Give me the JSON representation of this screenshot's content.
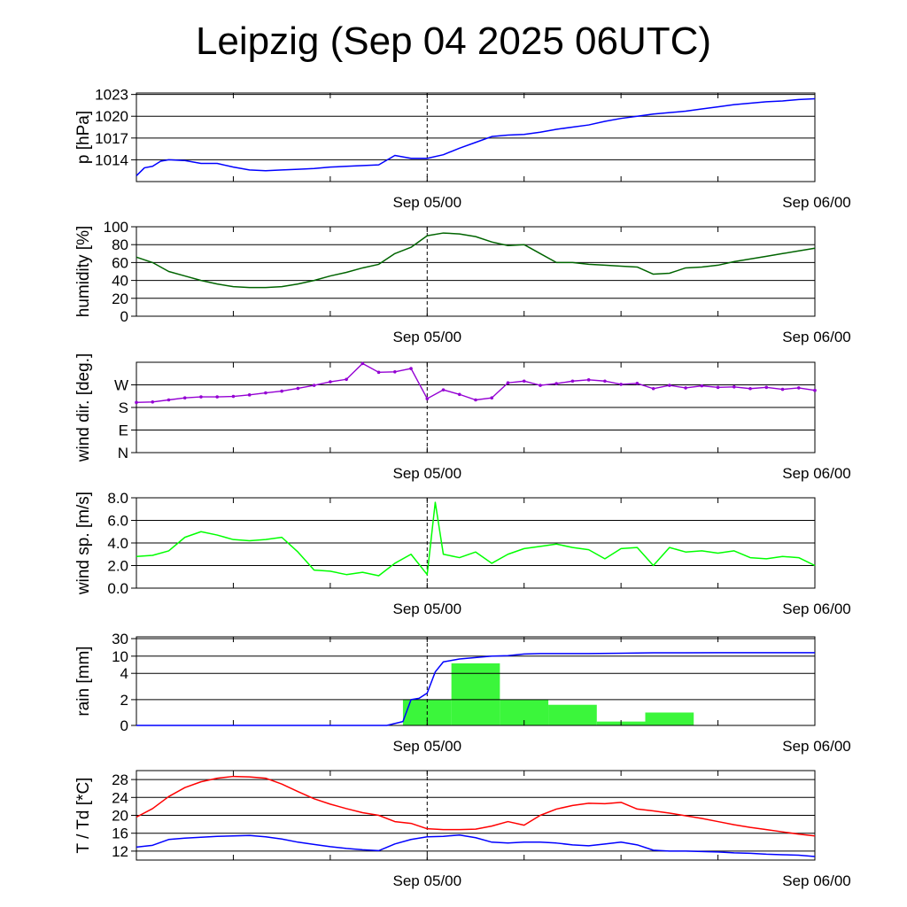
{
  "title": "Leipzig (Sep 04 2025 06UTC)",
  "x_tick_labels": [
    "Sep 05/00",
    "Sep 06/00"
  ],
  "colors": {
    "pressure": "#0000ff",
    "humidity": "#006400",
    "wind_dir": "#9400d3",
    "wind_speed": "#00ff00",
    "rain_bars": "#3bf63b",
    "rain_cum": "#0000ff",
    "temperature": "#ff0000",
    "dewpoint": "#0000ff"
  },
  "chart_data": [
    {
      "type": "line",
      "id": "pressure",
      "ylabel": "p [hPa]",
      "xlim_hours": [
        0,
        42
      ],
      "ylim": [
        1011,
        1023.2
      ],
      "yticks": [
        1014,
        1017,
        1020,
        1023
      ],
      "ytick_labels": [
        "1014",
        "1017",
        "1020",
        "1023"
      ],
      "series": [
        {
          "name": "pressure",
          "x": [
            0,
            0.5,
            1,
            1.5,
            2,
            3,
            4,
            5,
            6,
            7,
            8,
            9,
            10,
            11,
            12,
            13,
            15,
            16,
            17,
            18,
            19,
            20,
            21,
            22,
            23,
            24,
            25,
            26,
            27,
            28,
            29,
            30,
            31,
            32,
            33,
            34,
            35,
            36,
            37,
            38,
            39,
            40,
            41,
            42
          ],
          "values": [
            1011.8,
            1012.9,
            1013.1,
            1013.8,
            1014.0,
            1013.9,
            1013.5,
            1013.5,
            1013.0,
            1012.6,
            1012.5,
            1012.6,
            1012.7,
            1012.8,
            1013.0,
            1013.1,
            1013.3,
            1014.6,
            1014.2,
            1014.2,
            1014.7,
            1015.6,
            1016.4,
            1017.2,
            1017.4,
            1017.5,
            1017.8,
            1018.2,
            1018.5,
            1018.8,
            1019.3,
            1019.7,
            1020.0,
            1020.3,
            1020.5,
            1020.7,
            1021.0,
            1021.3,
            1021.6,
            1021.8,
            1022.0,
            1022.1,
            1022.3,
            1022.4
          ]
        }
      ]
    },
    {
      "type": "line",
      "id": "humidity",
      "ylabel": "humidity [%]",
      "xlim_hours": [
        0,
        42
      ],
      "ylim": [
        0,
        100
      ],
      "yticks": [
        0,
        20,
        40,
        60,
        80,
        100
      ],
      "ytick_labels": [
        "0",
        "20",
        "40",
        "60",
        "80",
        "100"
      ],
      "series": [
        {
          "name": "humidity",
          "x": [
            0,
            1,
            2,
            3,
            4,
            5,
            6,
            7,
            8,
            9,
            10,
            11,
            12,
            13,
            14,
            15,
            16,
            17,
            18,
            19,
            20,
            21,
            22,
            23,
            24,
            25,
            26,
            27,
            28,
            29,
            30,
            31,
            32,
            33,
            34,
            35,
            36,
            37,
            38,
            39,
            40,
            41,
            42
          ],
          "values": [
            66,
            60,
            50,
            45,
            40,
            36,
            33,
            32,
            32,
            33,
            36,
            40,
            45,
            49,
            54,
            58,
            70,
            77,
            90,
            93,
            92,
            89,
            83,
            79,
            80,
            70,
            60,
            60,
            58,
            57,
            56,
            55,
            47,
            48,
            54,
            55,
            57,
            61,
            64,
            67,
            70,
            73,
            76
          ]
        }
      ]
    },
    {
      "type": "scatter",
      "id": "wind_direction",
      "ylabel": "wind dir. [deg.]",
      "xlim_hours": [
        0,
        42
      ],
      "ylim": [
        0,
        360
      ],
      "yticks": [
        0,
        90,
        180,
        270
      ],
      "ytick_labels": [
        "N",
        "E",
        "S",
        "W"
      ],
      "series": [
        {
          "name": "wind direction",
          "x": [
            0,
            1,
            2,
            3,
            4,
            5,
            6,
            7,
            8,
            9,
            10,
            11,
            12,
            13,
            14,
            15,
            16,
            17,
            18,
            19,
            20,
            21,
            22,
            23,
            24,
            25,
            26,
            27,
            28,
            29,
            30,
            31,
            32,
            33,
            34,
            35,
            36,
            37,
            38,
            39,
            40,
            41,
            42
          ],
          "values": [
            200,
            202,
            210,
            218,
            222,
            222,
            224,
            230,
            238,
            245,
            256,
            268,
            282,
            292,
            355,
            320,
            322,
            335,
            215,
            250,
            232,
            210,
            218,
            278,
            285,
            268,
            275,
            285,
            290,
            285,
            272,
            276,
            255,
            268,
            258,
            266,
            260,
            262,
            255,
            260,
            252,
            258,
            248
          ]
        }
      ]
    },
    {
      "type": "line",
      "id": "wind_speed",
      "ylabel": "wind sp. [m/s]",
      "xlim_hours": [
        0,
        42
      ],
      "ylim": [
        0,
        8
      ],
      "yticks": [
        0,
        2,
        4,
        6,
        8
      ],
      "ytick_labels": [
        "0.0",
        "2.0",
        "4.0",
        "6.0",
        "8.0"
      ],
      "series": [
        {
          "name": "wind speed",
          "x": [
            0,
            1,
            2,
            3,
            4,
            5,
            6,
            7,
            8,
            9,
            10,
            11,
            12,
            13,
            14,
            15,
            16,
            17,
            18,
            18.5,
            19,
            20,
            21,
            22,
            23,
            24,
            25,
            26,
            27,
            28,
            29,
            30,
            31,
            32,
            33,
            34,
            35,
            36,
            37,
            38,
            39,
            40,
            41,
            42
          ],
          "values": [
            2.8,
            2.9,
            3.3,
            4.5,
            5.0,
            4.7,
            4.3,
            4.2,
            4.3,
            4.5,
            3.2,
            1.6,
            1.5,
            1.2,
            1.4,
            1.1,
            2.2,
            3.0,
            1.2,
            7.6,
            3.0,
            2.7,
            3.2,
            2.2,
            3.0,
            3.5,
            3.7,
            3.9,
            3.6,
            3.4,
            2.6,
            3.5,
            3.6,
            2.0,
            3.6,
            3.2,
            3.3,
            3.1,
            3.3,
            2.7,
            2.6,
            2.8,
            2.7,
            2.0
          ]
        }
      ]
    },
    {
      "type": "bar",
      "id": "rain",
      "ylabel": "rain [mm]",
      "xlim_hours": [
        0,
        42
      ],
      "ytick_labels": [
        "0",
        "2",
        "4",
        "10",
        "30"
      ],
      "ytick_values": [
        0,
        2,
        4,
        10,
        30
      ],
      "bars": [
        {
          "start": 16.5,
          "end": 19.5,
          "value": 2.0
        },
        {
          "start": 19.5,
          "end": 22.5,
          "value": 7.5
        },
        {
          "start": 22.5,
          "end": 25.5,
          "value": 2.0
        },
        {
          "start": 25.5,
          "end": 28.5,
          "value": 1.6
        },
        {
          "start": 28.5,
          "end": 31.5,
          "value": 0.3
        },
        {
          "start": 31.5,
          "end": 34.5,
          "value": 1.0
        },
        {
          "start": 34.5,
          "end": 37.5,
          "value": 0.02
        }
      ],
      "series": [
        {
          "name": "cumulative rain",
          "x": [
            0,
            15.5,
            16.5,
            17,
            17.5,
            18,
            18.5,
            19,
            19.5,
            20,
            21,
            22,
            23,
            24,
            25,
            26,
            28,
            30,
            31,
            32,
            34,
            36,
            38,
            40,
            42
          ],
          "values": [
            0,
            0,
            0.3,
            2.0,
            2.1,
            2.5,
            4.5,
            8.0,
            8.5,
            9.0,
            9.5,
            10.0,
            10.5,
            12.5,
            13.0,
            13.0,
            13.0,
            13.3,
            13.6,
            13.8,
            13.9,
            14.0,
            14.0,
            14.0,
            14.0
          ]
        }
      ]
    },
    {
      "type": "line",
      "id": "temperature",
      "ylabel": "T / Td [*C]",
      "xlim_hours": [
        0,
        42
      ],
      "ylim": [
        10,
        30
      ],
      "yticks": [
        12,
        16,
        20,
        24,
        28
      ],
      "ytick_labels": [
        "12",
        "16",
        "20",
        "24",
        "28"
      ],
      "series": [
        {
          "name": "temperature",
          "x": [
            0,
            1,
            2,
            3,
            4,
            5,
            6,
            7,
            8,
            9,
            10,
            11,
            12,
            13,
            14,
            15,
            16,
            17,
            18,
            19,
            20,
            21,
            22,
            23,
            24,
            25,
            26,
            27,
            28,
            29,
            30,
            31,
            32,
            33,
            34,
            35,
            36,
            37,
            38,
            39,
            40,
            41,
            42
          ],
          "values": [
            19.6,
            21.5,
            24.2,
            26.2,
            27.5,
            28.3,
            28.7,
            28.6,
            28.3,
            27.0,
            25.3,
            23.7,
            22.5,
            21.5,
            20.6,
            20.0,
            18.6,
            18.2,
            17.0,
            16.8,
            16.8,
            16.9,
            17.6,
            18.6,
            17.8,
            20.0,
            21.4,
            22.2,
            22.7,
            22.6,
            22.9,
            21.4,
            21.0,
            20.5,
            19.9,
            19.3,
            18.6,
            17.9,
            17.3,
            16.8,
            16.3,
            15.8,
            15.4
          ]
        },
        {
          "name": "dewpoint",
          "x": [
            0,
            1,
            2,
            3,
            4,
            5,
            6,
            7,
            8,
            9,
            10,
            11,
            12,
            13,
            14,
            15,
            16,
            17,
            18,
            19,
            20,
            21,
            22,
            23,
            24,
            25,
            26,
            27,
            28,
            29,
            30,
            31,
            32,
            33,
            34,
            35,
            36,
            37,
            38,
            39,
            40,
            41,
            42
          ],
          "values": [
            12.9,
            13.3,
            14.6,
            14.9,
            15.1,
            15.3,
            15.4,
            15.5,
            15.2,
            14.7,
            14.0,
            13.5,
            13.0,
            12.6,
            12.3,
            12.1,
            13.6,
            14.6,
            15.2,
            15.3,
            15.6,
            15.0,
            14.0,
            13.8,
            14.0,
            14.0,
            13.8,
            13.4,
            13.2,
            13.6,
            14.0,
            13.4,
            12.2,
            12.0,
            12.0,
            11.9,
            11.8,
            11.6,
            11.5,
            11.3,
            11.2,
            11.1,
            10.8
          ]
        }
      ]
    }
  ]
}
